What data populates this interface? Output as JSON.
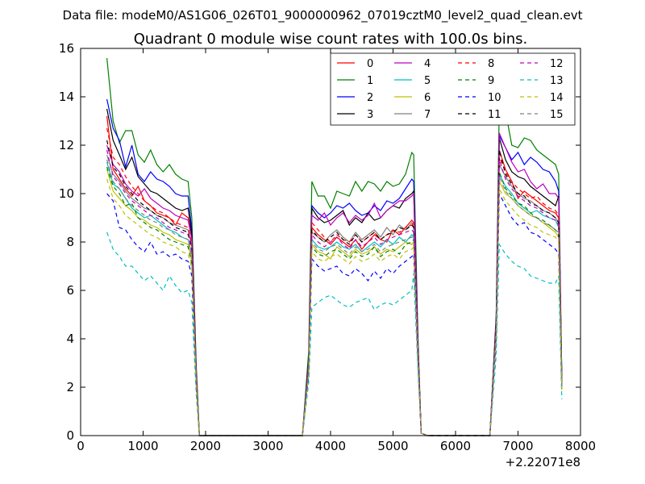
{
  "chart_data": {
    "type": "line",
    "suptitle": "Data file: modeM0/AS1G06_026T01_9000000962_07019cztM0_level2_quad_clean.evt",
    "title": "Quadrant 0 module wise count rates with 100.0s bins.",
    "xlabel": "",
    "ylabel": "",
    "x_offset_label": "+2.22071e8",
    "xlim": [
      0,
      8000
    ],
    "ylim": [
      0,
      16
    ],
    "x_ticks": [
      "0",
      "1000",
      "2000",
      "3000",
      "4000",
      "5000",
      "6000",
      "7000",
      "8000"
    ],
    "y_ticks": [
      "0",
      "2",
      "4",
      "6",
      "8",
      "10",
      "12",
      "14",
      "16"
    ],
    "grid": false,
    "legend_position": "top-right",
    "legend_columns": 4,
    "x": [
      420,
      520,
      620,
      720,
      820,
      920,
      1020,
      1120,
      1220,
      1320,
      1420,
      1520,
      1620,
      1720,
      1780,
      1850,
      1900,
      1950,
      2050,
      3000,
      3450,
      3550,
      3650,
      3700,
      3800,
      3900,
      4000,
      4100,
      4200,
      4300,
      4400,
      4500,
      4600,
      4700,
      4800,
      4900,
      5000,
      5100,
      5200,
      5300,
      5330,
      5400,
      5450,
      5550,
      6450,
      6550,
      6650,
      6700,
      6800,
      6900,
      7000,
      7100,
      7200,
      7300,
      7400,
      7500,
      7600,
      7650,
      7700
    ],
    "series": [
      {
        "name": "0",
        "color": "#ff0000",
        "dash": "solid",
        "values": [
          13.2,
          11.0,
          10.6,
          10.2,
          9.9,
          10.3,
          9.7,
          9.5,
          9.2,
          9.1,
          9.0,
          8.7,
          9.2,
          9.0,
          8.2,
          2.5,
          0,
          0,
          0,
          0,
          0,
          0,
          3.0,
          8.6,
          8.3,
          8.1,
          7.9,
          8.2,
          8.0,
          7.8,
          8.1,
          7.7,
          8.0,
          8.3,
          8.1,
          8.0,
          8.5,
          8.3,
          8.6,
          8.9,
          8.8,
          3.5,
          0.1,
          0,
          0,
          0,
          4.5,
          11.8,
          11.0,
          10.5,
          9.8,
          10.1,
          9.9,
          9.7,
          9.5,
          9.3,
          9.2,
          9.0,
          2.2
        ]
      },
      {
        "name": "1",
        "color": "#008000",
        "dash": "solid",
        "values": [
          15.6,
          13.0,
          12.1,
          12.6,
          12.6,
          11.6,
          11.3,
          11.8,
          11.2,
          10.9,
          11.2,
          10.8,
          10.6,
          10.5,
          9.0,
          2.9,
          0,
          0,
          0,
          0,
          0,
          0,
          3.5,
          10.5,
          9.9,
          9.9,
          9.4,
          10.1,
          10.0,
          9.9,
          10.5,
          10.1,
          10.5,
          10.4,
          10.1,
          10.5,
          10.3,
          10.4,
          10.8,
          11.7,
          11.6,
          4.0,
          0.1,
          0,
          0,
          0,
          5.0,
          13.8,
          13.4,
          12.0,
          11.9,
          12.3,
          12.2,
          11.8,
          11.6,
          11.4,
          11.2,
          10.8,
          2.5
        ]
      },
      {
        "name": "2",
        "color": "#0000ff",
        "dash": "solid",
        "values": [
          13.9,
          12.7,
          12.2,
          11.1,
          12.0,
          10.8,
          10.5,
          10.9,
          10.6,
          10.5,
          10.3,
          10.0,
          9.9,
          9.9,
          8.5,
          2.7,
          0,
          0,
          0,
          0,
          0,
          0,
          3.2,
          9.5,
          9.2,
          9.0,
          9.2,
          9.5,
          9.4,
          9.6,
          9.3,
          9.1,
          9.2,
          9.5,
          9.3,
          9.7,
          9.6,
          9.8,
          10.2,
          10.6,
          10.5,
          3.7,
          0.1,
          0,
          0,
          0,
          4.8,
          12.4,
          11.9,
          11.4,
          11.7,
          11.2,
          11.5,
          11.3,
          11.0,
          10.9,
          10.5,
          10.1,
          2.4
        ]
      },
      {
        "name": "3",
        "color": "#000000",
        "dash": "solid",
        "values": [
          13.5,
          12.2,
          11.6,
          11.0,
          11.5,
          10.7,
          10.4,
          10.1,
          10.0,
          9.8,
          9.6,
          9.4,
          9.3,
          9.4,
          8.3,
          2.6,
          0,
          0,
          0,
          0,
          0,
          0,
          3.1,
          9.4,
          9.0,
          8.8,
          8.9,
          9.1,
          9.3,
          8.7,
          9.0,
          8.8,
          9.2,
          8.9,
          9.0,
          9.3,
          9.5,
          9.4,
          9.8,
          10.0,
          10.1,
          3.6,
          0.1,
          0,
          0,
          0,
          4.7,
          12.3,
          11.4,
          10.9,
          10.7,
          10.6,
          10.3,
          10.1,
          9.9,
          9.7,
          9.5,
          9.9,
          2.3
        ]
      },
      {
        "name": "4",
        "color": "#bf00bf",
        "dash": "solid",
        "values": [
          12.0,
          11.2,
          10.9,
          10.4,
          10.1,
          9.9,
          10.2,
          9.8,
          9.6,
          9.4,
          9.3,
          9.1,
          9.0,
          8.9,
          8.1,
          2.5,
          0,
          0,
          0,
          0,
          0,
          0,
          3.0,
          9.1,
          8.9,
          9.2,
          8.7,
          9.0,
          9.2,
          8.8,
          9.1,
          8.9,
          9.1,
          9.6,
          9.0,
          9.3,
          9.5,
          9.7,
          9.7,
          9.9,
          10.0,
          3.5,
          0.1,
          0,
          0,
          0,
          4.6,
          12.5,
          11.9,
          11.3,
          10.9,
          11.0,
          10.5,
          10.2,
          10.4,
          10.0,
          10.0,
          9.8,
          2.3
        ]
      },
      {
        "name": "5",
        "color": "#00bfbf",
        "dash": "solid",
        "values": [
          11.3,
          10.4,
          10.2,
          9.8,
          9.4,
          9.2,
          9.0,
          9.1,
          8.9,
          8.7,
          8.5,
          8.4,
          8.2,
          8.1,
          7.5,
          2.3,
          0,
          0,
          0,
          0,
          0,
          0,
          2.8,
          8.1,
          7.8,
          7.7,
          7.8,
          8.0,
          7.8,
          7.7,
          7.9,
          7.6,
          7.8,
          8.0,
          7.8,
          8.1,
          7.9,
          8.2,
          8.0,
          8.3,
          8.2,
          3.2,
          0.1,
          0,
          0,
          0,
          4.3,
          10.8,
          10.3,
          10.0,
          9.6,
          9.4,
          9.2,
          9.3,
          9.1,
          9.0,
          8.9,
          8.6,
          2.0
        ]
      },
      {
        "name": "6",
        "color": "#bfbf00",
        "dash": "solid",
        "values": [
          11.0,
          10.1,
          9.8,
          9.5,
          9.3,
          9.0,
          8.9,
          8.7,
          8.6,
          8.4,
          8.3,
          8.1,
          8.0,
          7.9,
          7.2,
          2.2,
          0,
          0,
          0,
          0,
          0,
          0,
          2.7,
          7.9,
          7.6,
          7.5,
          7.3,
          7.8,
          7.6,
          7.4,
          7.7,
          7.5,
          7.6,
          7.8,
          7.5,
          7.7,
          7.6,
          7.8,
          8.0,
          7.9,
          8.0,
          3.1,
          0.1,
          0,
          0,
          0,
          4.2,
          10.5,
          10.0,
          9.8,
          9.5,
          9.3,
          9.1,
          9.0,
          8.8,
          8.6,
          8.4,
          8.2,
          1.9
        ]
      },
      {
        "name": "7",
        "color": "#808080",
        "dash": "solid",
        "values": [
          11.6,
          10.8,
          10.5,
          10.1,
          9.8,
          9.6,
          9.4,
          9.3,
          9.1,
          9.0,
          8.8,
          8.7,
          8.6,
          8.5,
          7.8,
          2.4,
          0,
          0,
          0,
          0,
          0,
          0,
          2.9,
          8.4,
          8.2,
          8.0,
          8.3,
          8.5,
          8.2,
          8.0,
          8.4,
          8.1,
          8.3,
          8.5,
          8.2,
          8.6,
          8.3,
          8.7,
          8.5,
          8.8,
          8.7,
          3.3,
          0.1,
          0,
          0,
          0,
          4.4,
          11.2,
          10.7,
          10.3,
          10.0,
          9.8,
          9.7,
          9.5,
          9.3,
          9.2,
          9.0,
          8.8,
          2.1
        ]
      },
      {
        "name": "8",
        "color": "#ff0000",
        "dash": "dashed",
        "values": [
          12.7,
          11.5,
          11.2,
          10.7,
          10.3,
          10.0,
          9.7,
          9.5,
          9.3,
          9.2,
          9.0,
          8.8,
          8.7,
          8.6,
          7.9,
          2.4,
          0,
          0,
          0,
          0,
          0,
          0,
          2.9,
          8.8,
          8.5,
          8.2,
          8.0,
          8.3,
          8.1,
          8.0,
          8.3,
          8.0,
          8.2,
          8.4,
          8.1,
          8.3,
          8.5,
          8.4,
          8.6,
          8.7,
          8.8,
          3.4,
          0.1,
          0,
          0,
          0,
          4.5,
          11.5,
          10.9,
          10.5,
          10.2,
          10.0,
          9.8,
          9.9,
          9.6,
          9.4,
          9.3,
          9.1,
          2.2
        ]
      },
      {
        "name": "9",
        "color": "#008000",
        "dash": "dashed",
        "values": [
          11.1,
          10.3,
          10.0,
          9.5,
          9.6,
          9.0,
          8.8,
          8.6,
          8.5,
          8.3,
          8.1,
          8.0,
          7.9,
          7.8,
          7.1,
          2.2,
          0,
          0,
          0,
          0,
          0,
          0,
          2.7,
          7.8,
          7.5,
          7.4,
          7.6,
          7.7,
          7.5,
          7.3,
          7.6,
          7.4,
          7.5,
          7.8,
          7.4,
          7.6,
          7.7,
          7.5,
          7.9,
          8.0,
          8.1,
          3.1,
          0.1,
          0,
          0,
          0,
          4.2,
          10.9,
          10.2,
          9.9,
          9.6,
          9.5,
          9.2,
          9.0,
          8.9,
          8.7,
          8.5,
          8.3,
          2.0
        ]
      },
      {
        "name": "10",
        "color": "#0000ff",
        "dash": "dashed",
        "values": [
          10.0,
          9.7,
          8.6,
          8.5,
          8.1,
          7.8,
          7.6,
          8.0,
          7.5,
          7.6,
          7.4,
          7.5,
          7.3,
          7.2,
          6.6,
          2.0,
          0,
          0,
          0,
          0,
          0,
          0,
          2.5,
          7.3,
          7.0,
          6.8,
          6.9,
          7.0,
          6.7,
          6.6,
          6.9,
          6.7,
          6.4,
          6.8,
          6.5,
          6.9,
          6.7,
          7.0,
          7.2,
          7.4,
          7.5,
          2.9,
          0.1,
          0,
          0,
          0,
          3.9,
          10.0,
          9.5,
          9.0,
          8.7,
          8.8,
          8.4,
          8.3,
          8.1,
          7.9,
          7.7,
          7.5,
          1.8
        ]
      },
      {
        "name": "11",
        "color": "#000000",
        "dash": "dashed",
        "values": [
          12.2,
          11.1,
          10.8,
          10.3,
          10.0,
          9.7,
          9.5,
          9.3,
          9.1,
          9.0,
          8.8,
          8.6,
          8.5,
          8.4,
          7.7,
          2.3,
          0,
          0,
          0,
          0,
          0,
          0,
          2.8,
          8.5,
          8.2,
          8.0,
          8.2,
          8.4,
          8.1,
          7.9,
          8.3,
          8.0,
          8.2,
          8.4,
          8.1,
          8.3,
          8.4,
          8.6,
          8.5,
          8.7,
          8.6,
          3.3,
          0.1,
          0,
          0,
          0,
          4.4,
          11.8,
          10.8,
          10.4,
          10.0,
          9.9,
          9.6,
          9.5,
          9.3,
          9.2,
          9.0,
          8.8,
          2.1
        ]
      },
      {
        "name": "12",
        "color": "#bf00bf",
        "dash": "dashed",
        "values": [
          11.8,
          10.7,
          10.4,
          10.0,
          9.7,
          9.5,
          9.3,
          9.1,
          9.0,
          8.8,
          8.6,
          8.5,
          8.4,
          8.3,
          7.6,
          2.3,
          0,
          0,
          0,
          0,
          0,
          0,
          2.8,
          8.3,
          8.0,
          7.8,
          8.0,
          8.2,
          7.9,
          7.7,
          8.1,
          7.8,
          8.0,
          8.2,
          7.9,
          8.1,
          8.2,
          8.3,
          8.4,
          8.5,
          8.4,
          3.2,
          0.1,
          0,
          0,
          0,
          4.3,
          11.4,
          10.6,
          10.2,
          9.9,
          9.7,
          9.5,
          9.4,
          9.2,
          9.0,
          8.9,
          8.7,
          2.0
        ]
      },
      {
        "name": "13",
        "color": "#00bfbf",
        "dash": "dashed",
        "values": [
          8.4,
          7.7,
          7.4,
          7.0,
          7.0,
          6.7,
          6.4,
          6.6,
          6.3,
          6.0,
          6.6,
          6.2,
          5.9,
          6.0,
          5.5,
          1.7,
          0,
          0,
          0,
          0,
          0,
          0,
          2.2,
          5.3,
          5.5,
          5.7,
          5.8,
          5.6,
          5.4,
          5.3,
          5.5,
          5.6,
          5.7,
          5.2,
          5.4,
          5.5,
          5.4,
          5.6,
          5.8,
          6.0,
          6.7,
          2.6,
          0.1,
          0,
          0,
          0,
          3.3,
          7.9,
          7.5,
          7.2,
          7.0,
          6.9,
          6.6,
          6.5,
          6.4,
          6.3,
          6.3,
          6.6,
          1.5
        ]
      },
      {
        "name": "14",
        "color": "#bfbf00",
        "dash": "dashed",
        "values": [
          10.6,
          9.8,
          9.5,
          9.1,
          8.9,
          8.7,
          8.5,
          8.3,
          8.2,
          8.0,
          7.9,
          7.8,
          7.6,
          7.5,
          6.9,
          2.1,
          0,
          0,
          0,
          0,
          0,
          0,
          2.6,
          7.6,
          7.3,
          7.2,
          7.4,
          7.5,
          7.3,
          7.1,
          7.4,
          7.2,
          7.3,
          7.5,
          7.2,
          7.4,
          7.5,
          7.3,
          7.6,
          7.7,
          7.8,
          3.0,
          0.1,
          0,
          0,
          0,
          4.1,
          10.2,
          9.7,
          9.4,
          9.1,
          8.9,
          8.7,
          8.6,
          8.4,
          8.3,
          8.2,
          8.0,
          1.9
        ]
      },
      {
        "name": "15",
        "color": "#808080",
        "dash": "dashed",
        "values": [
          11.4,
          10.5,
          10.2,
          9.8,
          9.5,
          9.3,
          9.1,
          8.9,
          8.8,
          8.6,
          8.5,
          8.3,
          8.2,
          8.1,
          7.4,
          2.2,
          0,
          0,
          0,
          0,
          0,
          0,
          2.7,
          8.0,
          7.7,
          7.6,
          7.8,
          7.9,
          7.7,
          7.5,
          7.8,
          7.6,
          7.7,
          7.9,
          7.6,
          7.8,
          7.9,
          8.0,
          8.1,
          8.2,
          8.1,
          3.1,
          0.1,
          0,
          0,
          0,
          4.2,
          10.7,
          10.1,
          9.8,
          9.5,
          9.3,
          9.1,
          9.0,
          8.8,
          8.7,
          8.5,
          8.4,
          2.0
        ]
      }
    ]
  }
}
